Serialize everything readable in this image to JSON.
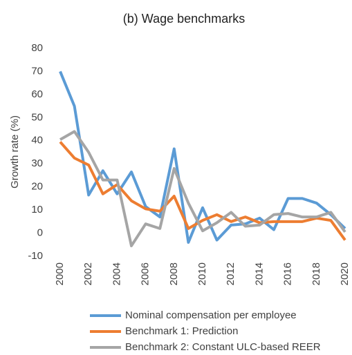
{
  "chart_data": {
    "type": "line",
    "title": "(b) Wage benchmarks",
    "y_label": "Growth rate (%)",
    "x": [
      2000,
      2001,
      2002,
      2003,
      2004,
      2005,
      2006,
      2007,
      2008,
      2009,
      2010,
      2011,
      2012,
      2013,
      2014,
      2015,
      2016,
      2017,
      2018,
      2019,
      2020
    ],
    "xlim": [
      2000,
      2020
    ],
    "xticks": [
      2000,
      2002,
      2004,
      2006,
      2008,
      2010,
      2012,
      2014,
      2016,
      2018,
      2020
    ],
    "ylim": [
      -10,
      80
    ],
    "yticks": [
      -10,
      0,
      10,
      20,
      30,
      40,
      50,
      60,
      70,
      80
    ],
    "grid": false,
    "legend": "bottom",
    "series": [
      {
        "name": "Nominal compensation per employee",
        "color": "#5b9bd5",
        "values": [
          70,
          55,
          16.5,
          27,
          17,
          26.5,
          11.5,
          7,
          36.5,
          -4,
          11,
          -3,
          3.5,
          4,
          6.5,
          1.5,
          15,
          15,
          13,
          8,
          2
        ]
      },
      {
        "name": "Benchmark 1: Prediction",
        "color": "#ed7d31",
        "values": [
          39.5,
          32.5,
          29.5,
          17,
          21,
          14,
          10.5,
          9.5,
          16,
          2,
          5.5,
          8,
          5,
          7,
          4.5,
          5,
          5,
          5,
          6.5,
          5.5,
          -3
        ]
      },
      {
        "name": "Benchmark 2: Constant ULC-based REER",
        "color": "#a5a5a5",
        "values": [
          40.5,
          44,
          35,
          23,
          23,
          -5.5,
          4,
          2,
          28,
          13,
          1,
          4.5,
          9,
          3,
          3.5,
          8,
          8.5,
          7,
          7,
          9,
          0.5
        ]
      }
    ]
  }
}
